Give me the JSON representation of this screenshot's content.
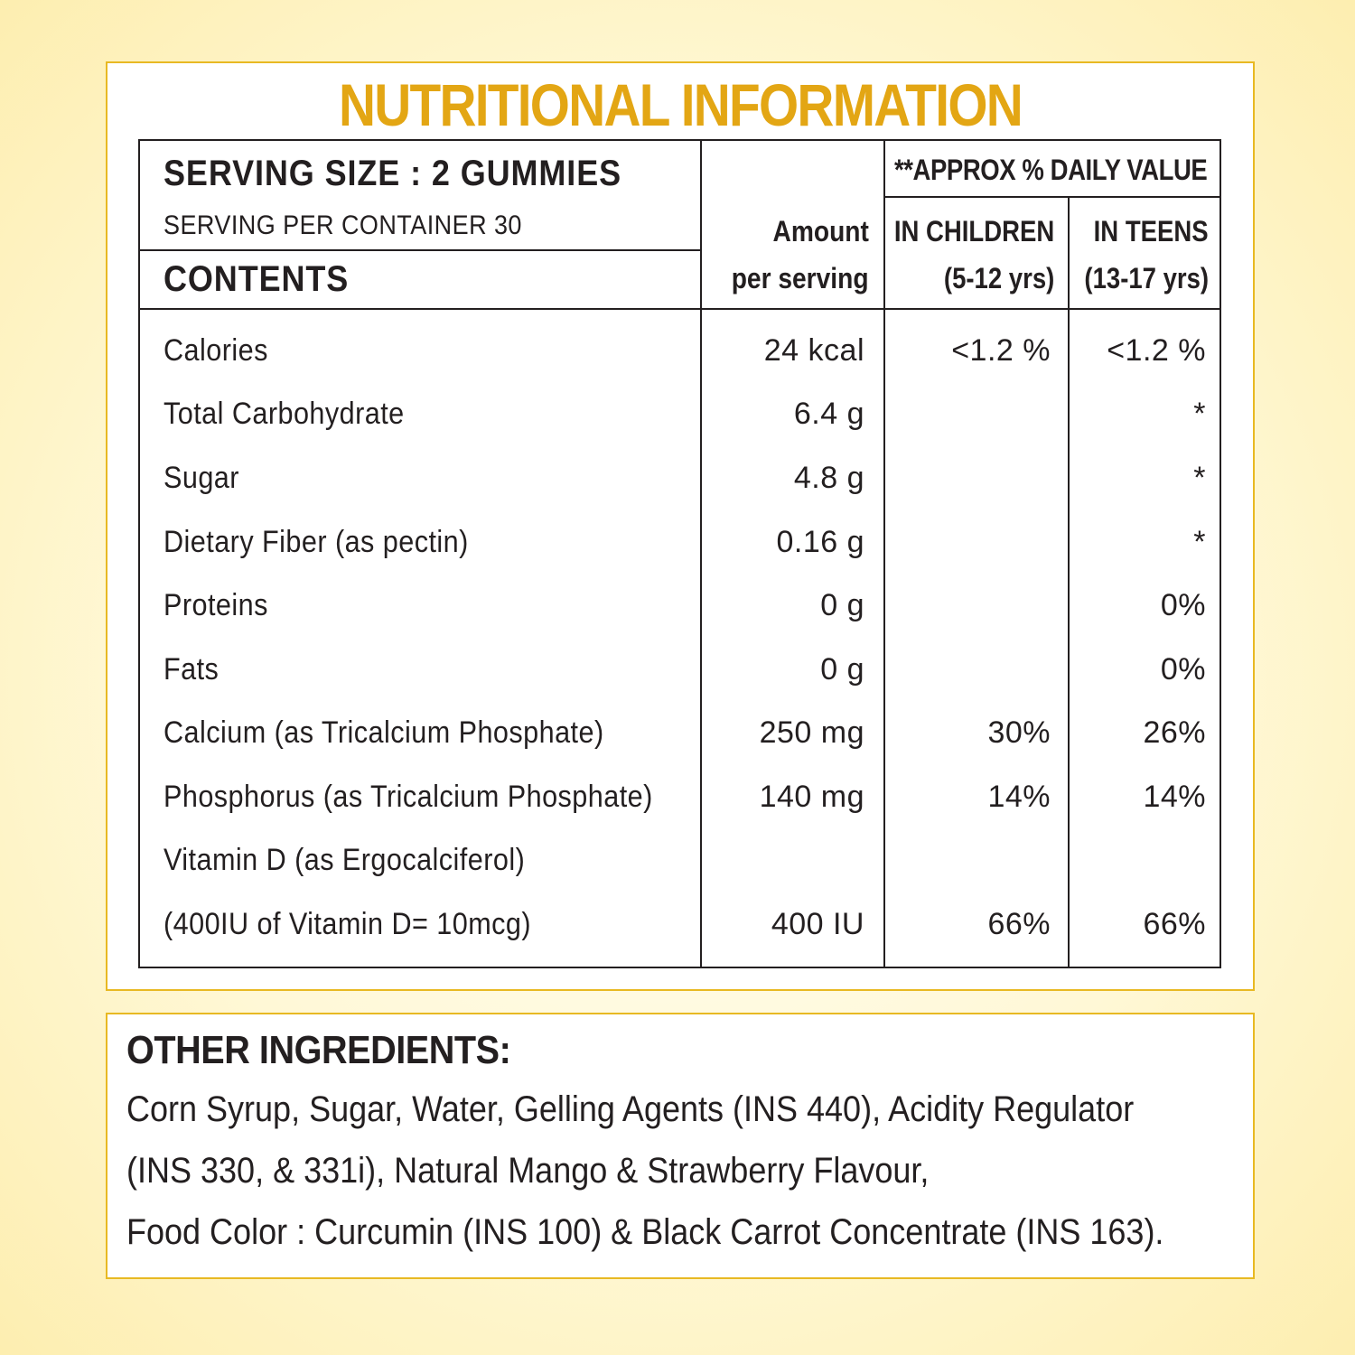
{
  "title": "NUTRITIONAL INFORMATION",
  "header": {
    "serving_size": "SERVING SIZE : 2 GUMMIES",
    "servings_per_container": "SERVING PER CONTAINER 30",
    "contents": "CONTENTS",
    "amount_line1": "Amount",
    "amount_line2": "per serving",
    "daily_value": "**APPROX % DAILY VALUE",
    "children_line1": "IN CHILDREN",
    "children_line2": "(5-12 yrs)",
    "teens_line1": "IN TEENS",
    "teens_line2": "(13-17 yrs)"
  },
  "rows": [
    {
      "name": "Calories",
      "amount": "24 kcal",
      "children": "<1.2 %",
      "teens": "<1.2 %"
    },
    {
      "name": "Total Carbohydrate",
      "amount": "6.4 g",
      "children": "",
      "teens": "*"
    },
    {
      "name": "Sugar",
      "amount": "4.8 g",
      "children": "",
      "teens": "*"
    },
    {
      "name": "Dietary Fiber (as pectin)",
      "amount": "0.16 g",
      "children": "",
      "teens": "*"
    },
    {
      "name": "Proteins",
      "amount": "0 g",
      "children": "",
      "teens": "0%"
    },
    {
      "name": "Fats",
      "amount": "0 g",
      "children": "",
      "teens": "0%"
    },
    {
      "name": "Calcium (as Tricalcium Phosphate)",
      "amount": "250 mg",
      "children": "30%",
      "teens": "26%"
    },
    {
      "name": "Phosphorus (as Tricalcium Phosphate)",
      "amount": "140 mg",
      "children": "14%",
      "teens": "14%"
    },
    {
      "name": "Vitamin D (as Ergocalciferol)",
      "amount": "",
      "children": "",
      "teens": ""
    },
    {
      "name": "(400IU of Vitamin D= 10mcg)",
      "amount": "400 IU",
      "children": "66%",
      "teens": "66%"
    }
  ],
  "ingredients": {
    "heading": "OTHER INGREDIENTS:",
    "lines": [
      "Corn Syrup, Sugar, Water, Gelling Agents (INS 440), Acidity Regulator",
      "(INS 330, & 331i), Natural Mango & Strawberry Flavour,",
      "Food Color : Curcumin (INS 100) & Black Carrot Concentrate (INS 163)."
    ]
  },
  "colors": {
    "accent": "#e3a614",
    "panel_border": "#e8b923",
    "text": "#231f20"
  }
}
